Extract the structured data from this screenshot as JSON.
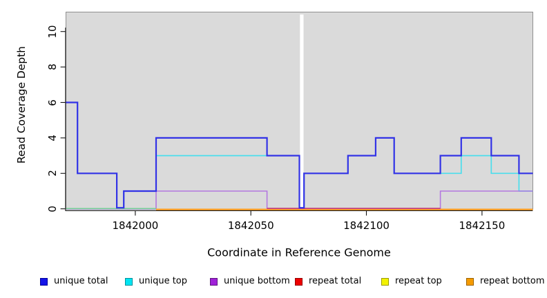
{
  "figure": {
    "x_axis_title": "Coordinate in Reference Genome",
    "y_axis_title": "Read Coverage Depth"
  },
  "legend": {
    "items": [
      {
        "label": "unique total",
        "fill": "#1414E8",
        "border": "#00009B"
      },
      {
        "label": "unique top",
        "fill": "#00E5F2",
        "border": "#00909B"
      },
      {
        "label": "unique bottom",
        "fill": "#A021D8",
        "border": "#5E1380"
      },
      {
        "label": "repeat total",
        "fill": "#EE0000",
        "border": "#940000"
      },
      {
        "label": "repeat top",
        "fill": "#F2F200",
        "border": "#9B9B00"
      },
      {
        "label": "repeat bottom",
        "fill": "#F59B00",
        "border": "#9B6200"
      }
    ]
  },
  "chart_data": {
    "type": "line",
    "subtype": "step",
    "title": "",
    "xlabel": "Coordinate in Reference Genome",
    "ylabel": "Read Coverage Depth",
    "xlim": [
      1841970,
      1842172
    ],
    "ylim": [
      0,
      11.1
    ],
    "xticks": [
      "1842000",
      "1842050",
      "1842100",
      "1842150"
    ],
    "xtick_values": [
      1842000,
      1842050,
      1842100,
      1842150
    ],
    "yticks": [
      "0",
      "2",
      "4",
      "6",
      "8",
      "10"
    ],
    "ytick_values": [
      0,
      2,
      4,
      6,
      8,
      10
    ],
    "grid": false,
    "plot_background": "#DADADA",
    "legend_position": "bottom",
    "series": [
      {
        "name": "unique total",
        "color": "#3232E6",
        "points": [
          [
            1841970,
            6
          ],
          [
            1841975,
            2
          ],
          [
            1841992,
            0
          ],
          [
            1841995,
            1
          ],
          [
            1842009,
            4
          ],
          [
            1842057,
            3
          ],
          [
            1842071,
            0
          ],
          [
            1842073,
            2
          ],
          [
            1842092,
            3
          ],
          [
            1842104,
            4
          ],
          [
            1842112,
            2
          ],
          [
            1842132,
            3
          ],
          [
            1842141,
            4
          ],
          [
            1842154,
            3
          ],
          [
            1842166,
            2
          ],
          [
            1842172,
            2
          ]
        ]
      },
      {
        "name": "unique top",
        "color": "#4ADEEC",
        "points": [
          [
            1841970,
            6
          ],
          [
            1841975,
            2
          ],
          [
            1841992,
            0
          ],
          [
            1841995,
            1
          ],
          [
            1842009,
            3
          ],
          [
            1842071,
            0
          ],
          [
            1842073,
            2
          ],
          [
            1842092,
            3
          ],
          [
            1842104,
            4
          ],
          [
            1842112,
            2
          ],
          [
            1842141,
            3
          ],
          [
            1842154,
            2
          ],
          [
            1842166,
            1
          ],
          [
            1842172,
            1
          ]
        ]
      },
      {
        "name": "unique bottom",
        "color": "#B377E0",
        "points": [
          [
            1841970,
            0
          ],
          [
            1842009,
            1
          ],
          [
            1842057,
            0
          ],
          [
            1842132,
            1
          ],
          [
            1842172,
            1
          ]
        ]
      },
      {
        "name": "repeat total",
        "color": "#C2407C",
        "points": [
          [
            1841970,
            0
          ],
          [
            1842172,
            0
          ]
        ],
        "visible_zero_segment": [
          1842057,
          1842132
        ]
      },
      {
        "name": "repeat top",
        "color": "#F2F200",
        "points": [
          [
            1841970,
            0
          ],
          [
            1842172,
            0
          ]
        ],
        "visible_zero_segment": null
      },
      {
        "name": "repeat bottom",
        "color": "#FF9D1E",
        "points": [
          [
            1841970,
            0
          ],
          [
            1842172,
            0
          ]
        ],
        "visible_zero_segment": [
          1842009,
          1842172
        ]
      }
    ],
    "annotations": {
      "coverage_gap_white_band": [
        1842071,
        1842073
      ],
      "green_baseline_segment": {
        "range": [
          1841970,
          1842009
        ],
        "color": "#7CD49C"
      }
    }
  }
}
